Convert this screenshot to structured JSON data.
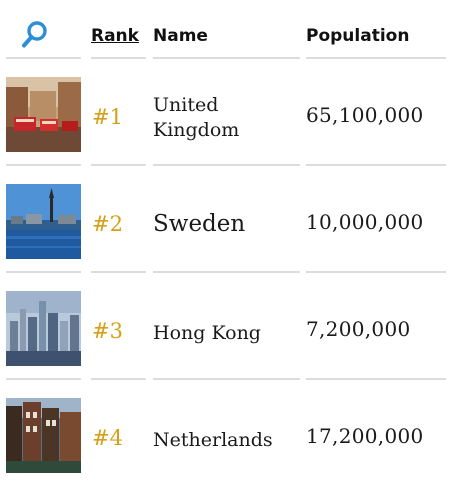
{
  "header": {
    "search_icon": "search-icon",
    "rank_label": "Rank",
    "name_label": "Name",
    "population_label": "Population"
  },
  "colors": {
    "accent": "#2b8fd6",
    "rank_gold": "#d4a017",
    "divider": "#dcdcdc"
  },
  "rows": [
    {
      "rank": "#1",
      "name": "United Kingdom",
      "population": "65,100,000",
      "thumbnail": "london-street-photo"
    },
    {
      "rank": "#2",
      "name": "Sweden",
      "population": "10,000,000",
      "thumbnail": "stockholm-waterfront-photo"
    },
    {
      "rank": "#3",
      "name": "Hong Kong",
      "population": "7,200,000",
      "thumbnail": "hong-kong-skyline-photo"
    },
    {
      "rank": "#4",
      "name": "Netherlands",
      "population": "17,200,000",
      "thumbnail": "amsterdam-canal-houses-photo"
    }
  ]
}
